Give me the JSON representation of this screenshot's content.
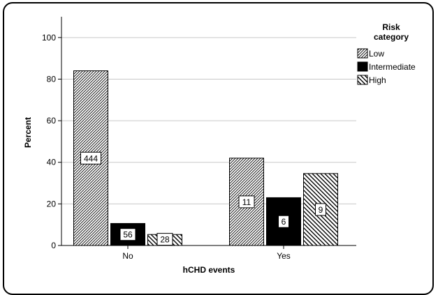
{
  "chart_data": {
    "type": "bar",
    "title": "",
    "xlabel": "hCHD events",
    "ylabel": "Percent",
    "categories": [
      "No",
      "Yes"
    ],
    "ylim": [
      0,
      110
    ],
    "yticks": [
      0,
      20,
      40,
      60,
      80,
      100
    ],
    "grid": true,
    "legend": {
      "title": "Risk category",
      "position": "top-right"
    },
    "series": [
      {
        "name": "Low",
        "pattern": "diagonal-forward",
        "color": "#000000",
        "values": [
          84,
          42
        ],
        "labels": [
          "444",
          "11"
        ]
      },
      {
        "name": "Intermediate",
        "pattern": "solid",
        "color": "#000000",
        "values": [
          10.6,
          23
        ],
        "labels": [
          "56",
          "6"
        ]
      },
      {
        "name": "High",
        "pattern": "diagonal-back",
        "color": "#000000",
        "values": [
          5.3,
          34.6
        ],
        "labels": [
          "28",
          "9"
        ]
      }
    ]
  }
}
